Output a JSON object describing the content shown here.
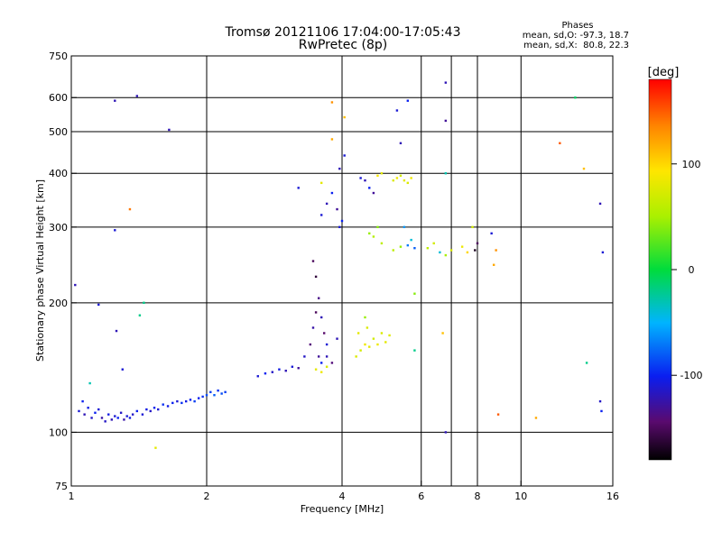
{
  "header": {
    "title": "Tromsø 20121106 17:04:00-17:05:43",
    "subtitle": "RwPretec (8p)",
    "phases_title": "Phases",
    "phases_line1": "mean, sd,O: -97.3, 18.7",
    "phases_line2": "mean, sd,X:  80.8, 22.3"
  },
  "colorbar": {
    "label": "[deg]",
    "range": [
      -180,
      180
    ],
    "ticks": [
      {
        "value": 100,
        "label": "100"
      },
      {
        "value": 0,
        "label": "0"
      },
      {
        "value": -100,
        "label": "-100"
      }
    ]
  },
  "chart_data": {
    "type": "scatter",
    "xlabel": "Frequency [MHz]",
    "ylabel": "Stationary phase Virtual Height [km]",
    "xscale": "log",
    "yscale": "log",
    "xlim": [
      1,
      16
    ],
    "ylim": [
      75,
      750
    ],
    "xticks": [
      {
        "value": 1,
        "label": "1"
      },
      {
        "value": 2,
        "label": "2"
      },
      {
        "value": 4,
        "label": "4"
      },
      {
        "value": 6,
        "label": "6"
      },
      {
        "value": 8,
        "label": "8"
      },
      {
        "value": 10,
        "label": "10"
      },
      {
        "value": 16,
        "label": "16"
      }
    ],
    "yticks": [
      {
        "value": 75,
        "label": "75"
      },
      {
        "value": 100,
        "label": "100"
      },
      {
        "value": 200,
        "label": "200"
      },
      {
        "value": 300,
        "label": "300"
      },
      {
        "value": 400,
        "label": "400"
      },
      {
        "value": 500,
        "label": "500"
      },
      {
        "value": 600,
        "label": "600"
      },
      {
        "value": 750,
        "label": "750"
      }
    ],
    "xgrid": [
      2,
      4,
      6,
      7,
      8,
      10
    ],
    "ygrid": [
      100,
      200,
      300,
      400,
      500,
      600
    ],
    "color_encoding": "phase in degrees (-180 to 180, rainbow)",
    "points": [
      {
        "x": 1.04,
        "y": 112,
        "p": -110
      },
      {
        "x": 1.06,
        "y": 118,
        "p": -100
      },
      {
        "x": 1.07,
        "y": 110,
        "p": -120
      },
      {
        "x": 1.09,
        "y": 114,
        "p": -105
      },
      {
        "x": 1.11,
        "y": 108,
        "p": -115
      },
      {
        "x": 1.13,
        "y": 111,
        "p": -100
      },
      {
        "x": 1.15,
        "y": 113,
        "p": -110
      },
      {
        "x": 1.17,
        "y": 108,
        "p": -125
      },
      {
        "x": 1.19,
        "y": 106,
        "p": -115
      },
      {
        "x": 1.21,
        "y": 110,
        "p": -105
      },
      {
        "x": 1.23,
        "y": 107,
        "p": -120
      },
      {
        "x": 1.25,
        "y": 109,
        "p": -110
      },
      {
        "x": 1.27,
        "y": 108,
        "p": -100
      },
      {
        "x": 1.29,
        "y": 111,
        "p": -115
      },
      {
        "x": 1.31,
        "y": 107,
        "p": -125
      },
      {
        "x": 1.33,
        "y": 109,
        "p": -110
      },
      {
        "x": 1.35,
        "y": 108,
        "p": -105
      },
      {
        "x": 1.37,
        "y": 110,
        "p": -115
      },
      {
        "x": 1.4,
        "y": 112,
        "p": -100
      },
      {
        "x": 1.44,
        "y": 110,
        "p": -110
      },
      {
        "x": 1.47,
        "y": 113,
        "p": -105
      },
      {
        "x": 1.5,
        "y": 112,
        "p": -115
      },
      {
        "x": 1.53,
        "y": 114,
        "p": -100
      },
      {
        "x": 1.56,
        "y": 113,
        "p": -110
      },
      {
        "x": 1.6,
        "y": 116,
        "p": -95
      },
      {
        "x": 1.64,
        "y": 115,
        "p": -105
      },
      {
        "x": 1.68,
        "y": 117,
        "p": -100
      },
      {
        "x": 1.72,
        "y": 118,
        "p": -110
      },
      {
        "x": 1.76,
        "y": 117,
        "p": -95
      },
      {
        "x": 1.8,
        "y": 118,
        "p": -105
      },
      {
        "x": 1.84,
        "y": 119,
        "p": -100
      },
      {
        "x": 1.88,
        "y": 118,
        "p": -90
      },
      {
        "x": 1.92,
        "y": 120,
        "p": -100
      },
      {
        "x": 1.96,
        "y": 121,
        "p": -95
      },
      {
        "x": 2.0,
        "y": 122,
        "p": -85
      },
      {
        "x": 2.04,
        "y": 124,
        "p": -90
      },
      {
        "x": 2.08,
        "y": 122,
        "p": -80
      },
      {
        "x": 2.12,
        "y": 125,
        "p": -95
      },
      {
        "x": 2.16,
        "y": 123,
        "p": -85
      },
      {
        "x": 2.2,
        "y": 124,
        "p": -90
      },
      {
        "x": 2.6,
        "y": 135,
        "p": -110
      },
      {
        "x": 2.7,
        "y": 137,
        "p": -100
      },
      {
        "x": 2.8,
        "y": 138,
        "p": -115
      },
      {
        "x": 2.9,
        "y": 140,
        "p": -105
      },
      {
        "x": 3.0,
        "y": 139,
        "p": -120
      },
      {
        "x": 3.1,
        "y": 142,
        "p": -110
      },
      {
        "x": 3.2,
        "y": 141,
        "p": -130
      },
      {
        "x": 3.3,
        "y": 150,
        "p": -115
      },
      {
        "x": 3.4,
        "y": 160,
        "p": -140
      },
      {
        "x": 3.45,
        "y": 175,
        "p": -125
      },
      {
        "x": 3.5,
        "y": 190,
        "p": -150
      },
      {
        "x": 3.55,
        "y": 205,
        "p": -135
      },
      {
        "x": 3.6,
        "y": 185,
        "p": -120
      },
      {
        "x": 3.65,
        "y": 170,
        "p": -145
      },
      {
        "x": 3.7,
        "y": 160,
        "p": -110
      },
      {
        "x": 3.55,
        "y": 150,
        "p": -130
      },
      {
        "x": 3.6,
        "y": 145,
        "p": -100
      },
      {
        "x": 3.7,
        "y": 150,
        "p": -120
      },
      {
        "x": 3.5,
        "y": 140,
        "p": 80
      },
      {
        "x": 3.6,
        "y": 138,
        "p": 85
      },
      {
        "x": 3.7,
        "y": 142,
        "p": 75
      },
      {
        "x": 3.8,
        "y": 145,
        "p": -140
      },
      {
        "x": 3.9,
        "y": 165,
        "p": -120
      },
      {
        "x": 3.5,
        "y": 230,
        "p": -160
      },
      {
        "x": 3.45,
        "y": 250,
        "p": -150
      },
      {
        "x": 3.6,
        "y": 320,
        "p": -110
      },
      {
        "x": 3.7,
        "y": 340,
        "p": -120
      },
      {
        "x": 3.8,
        "y": 360,
        "p": -100
      },
      {
        "x": 3.9,
        "y": 330,
        "p": -130
      },
      {
        "x": 3.95,
        "y": 300,
        "p": -110
      },
      {
        "x": 4.0,
        "y": 310,
        "p": -100
      },
      {
        "x": 4.05,
        "y": 440,
        "p": -110
      },
      {
        "x": 3.95,
        "y": 410,
        "p": -120
      },
      {
        "x": 3.2,
        "y": 370,
        "p": -110
      },
      {
        "x": 3.6,
        "y": 380,
        "p": 80
      },
      {
        "x": 4.3,
        "y": 150,
        "p": 75
      },
      {
        "x": 4.35,
        "y": 170,
        "p": 80
      },
      {
        "x": 4.4,
        "y": 155,
        "p": 70
      },
      {
        "x": 4.5,
        "y": 160,
        "p": 85
      },
      {
        "x": 4.55,
        "y": 175,
        "p": 75
      },
      {
        "x": 4.6,
        "y": 158,
        "p": 80
      },
      {
        "x": 4.7,
        "y": 165,
        "p": 70
      },
      {
        "x": 4.8,
        "y": 160,
        "p": 85
      },
      {
        "x": 4.9,
        "y": 170,
        "p": 75
      },
      {
        "x": 5.0,
        "y": 162,
        "p": 80
      },
      {
        "x": 5.1,
        "y": 168,
        "p": 78
      },
      {
        "x": 4.5,
        "y": 185,
        "p": 45
      },
      {
        "x": 4.6,
        "y": 290,
        "p": 45
      },
      {
        "x": 4.7,
        "y": 285,
        "p": 55
      },
      {
        "x": 4.8,
        "y": 300,
        "p": 40
      },
      {
        "x": 4.9,
        "y": 275,
        "p": 60
      },
      {
        "x": 4.4,
        "y": 390,
        "p": -110
      },
      {
        "x": 4.5,
        "y": 385,
        "p": -120
      },
      {
        "x": 4.6,
        "y": 370,
        "p": -100
      },
      {
        "x": 4.7,
        "y": 360,
        "p": -130
      },
      {
        "x": 4.8,
        "y": 395,
        "p": 90
      },
      {
        "x": 4.9,
        "y": 400,
        "p": 80
      },
      {
        "x": 5.2,
        "y": 385,
        "p": 75
      },
      {
        "x": 5.3,
        "y": 390,
        "p": 85
      },
      {
        "x": 5.4,
        "y": 395,
        "p": 70
      },
      {
        "x": 5.5,
        "y": 385,
        "p": 80
      },
      {
        "x": 5.6,
        "y": 380,
        "p": 75
      },
      {
        "x": 5.7,
        "y": 390,
        "p": 85
      },
      {
        "x": 5.4,
        "y": 470,
        "p": -120
      },
      {
        "x": 5.3,
        "y": 560,
        "p": -110
      },
      {
        "x": 5.6,
        "y": 590,
        "p": -100
      },
      {
        "x": 5.5,
        "y": 300,
        "p": -60
      },
      {
        "x": 5.7,
        "y": 280,
        "p": -40
      },
      {
        "x": 5.2,
        "y": 265,
        "p": 60
      },
      {
        "x": 5.4,
        "y": 270,
        "p": 45
      },
      {
        "x": 5.6,
        "y": 272,
        "p": -70
      },
      {
        "x": 5.8,
        "y": 268,
        "p": -80
      },
      {
        "x": 6.2,
        "y": 268,
        "p": 60
      },
      {
        "x": 6.4,
        "y": 275,
        "p": 70
      },
      {
        "x": 6.6,
        "y": 262,
        "p": -40
      },
      {
        "x": 6.8,
        "y": 258,
        "p": 50
      },
      {
        "x": 7.0,
        "y": 265,
        "p": 75
      },
      {
        "x": 7.4,
        "y": 270,
        "p": 85
      },
      {
        "x": 7.6,
        "y": 262,
        "p": 100
      },
      {
        "x": 7.8,
        "y": 300,
        "p": 70
      },
      {
        "x": 7.9,
        "y": 265,
        "p": -170
      },
      {
        "x": 8.0,
        "y": 275,
        "p": -150
      },
      {
        "x": 8.6,
        "y": 290,
        "p": -110
      },
      {
        "x": 8.8,
        "y": 265,
        "p": 130
      },
      {
        "x": 8.7,
        "y": 245,
        "p": 120
      },
      {
        "x": 6.8,
        "y": 650,
        "p": -120
      },
      {
        "x": 6.8,
        "y": 530,
        "p": -130
      },
      {
        "x": 6.8,
        "y": 400,
        "p": -30
      },
      {
        "x": 6.7,
        "y": 170,
        "p": 110
      },
      {
        "x": 6.8,
        "y": 100,
        "p": -120
      },
      {
        "x": 5.8,
        "y": 155,
        "p": -20
      },
      {
        "x": 8.9,
        "y": 110,
        "p": 150
      },
      {
        "x": 10.8,
        "y": 108,
        "p": 120
      },
      {
        "x": 12.2,
        "y": 470,
        "p": 150
      },
      {
        "x": 13.2,
        "y": 600,
        "p": -10
      },
      {
        "x": 13.8,
        "y": 410,
        "p": 110
      },
      {
        "x": 14.0,
        "y": 145,
        "p": -20
      },
      {
        "x": 15.0,
        "y": 340,
        "p": -120
      },
      {
        "x": 15.0,
        "y": 118,
        "p": -115
      },
      {
        "x": 15.1,
        "y": 112,
        "p": -100
      },
      {
        "x": 15.2,
        "y": 262,
        "p": -110
      },
      {
        "x": 1.02,
        "y": 220,
        "p": -120
      },
      {
        "x": 1.1,
        "y": 130,
        "p": -30
      },
      {
        "x": 1.15,
        "y": 198,
        "p": -110
      },
      {
        "x": 1.25,
        "y": 590,
        "p": -120
      },
      {
        "x": 1.25,
        "y": 295,
        "p": -110
      },
      {
        "x": 1.26,
        "y": 172,
        "p": -120
      },
      {
        "x": 1.3,
        "y": 140,
        "p": -110
      },
      {
        "x": 1.35,
        "y": 330,
        "p": 140
      },
      {
        "x": 1.4,
        "y": 605,
        "p": -120
      },
      {
        "x": 1.42,
        "y": 187,
        "p": -20
      },
      {
        "x": 1.45,
        "y": 200,
        "p": -20
      },
      {
        "x": 1.54,
        "y": 92,
        "p": 80
      },
      {
        "x": 1.65,
        "y": 505,
        "p": -120
      },
      {
        "x": 3.8,
        "y": 585,
        "p": 130
      },
      {
        "x": 4.05,
        "y": 540,
        "p": 110
      },
      {
        "x": 3.8,
        "y": 480,
        "p": 120
      },
      {
        "x": 5.8,
        "y": 210,
        "p": 40
      }
    ]
  }
}
